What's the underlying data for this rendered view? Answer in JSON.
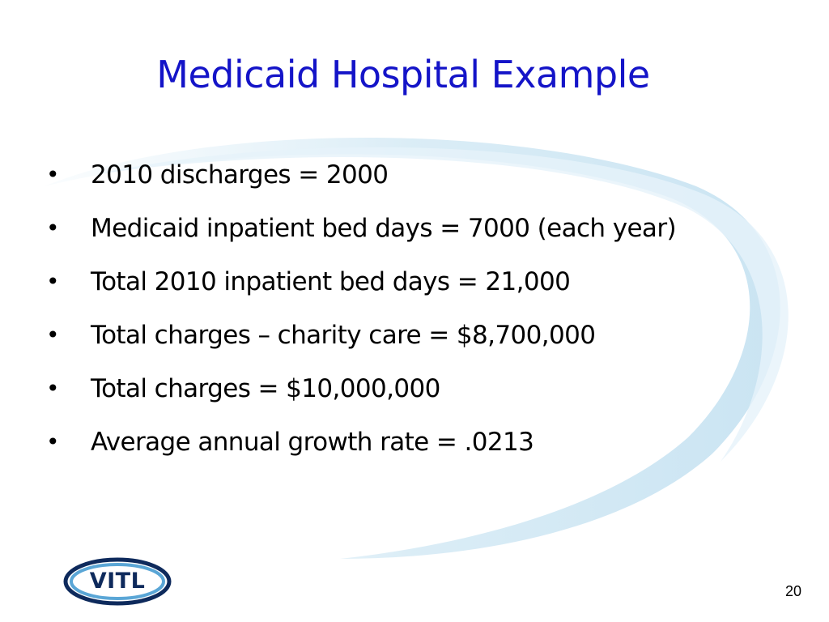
{
  "slide": {
    "title": "Medicaid Hospital Example",
    "bullets": [
      "2010 discharges = 2000",
      "Medicaid inpatient bed days = 7000 (each year)",
      "Total 2010 inpatient bed days = 21,000",
      "Total charges – charity care = $8,700,000",
      "Total charges = $10,000,000",
      "Average annual growth rate = .0213"
    ],
    "bullet_symbol": "•",
    "page_number": "20"
  },
  "logo": {
    "text": "VITL",
    "colors": {
      "ring_outer": "#0e2a5c",
      "ring_inner": "#5aa6d6"
    }
  },
  "colors": {
    "title": "#1414c8",
    "swoosh": "#bfe0f0"
  }
}
